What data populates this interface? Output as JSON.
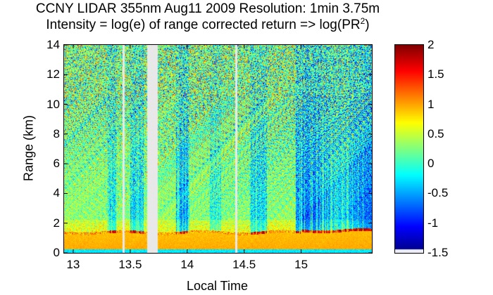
{
  "chart_data": {
    "type": "heatmap",
    "title_line1": "CCNY LIDAR 355nm Aug11 2009 Resolution: 1min 3.75m",
    "title_line2_prefix": "Intensity = log(e) of range corrected return => log(PR",
    "title_line2_sup": "2",
    "title_line2_suffix": ")",
    "xlabel": "Local Time",
    "ylabel": "Range (km)",
    "xlim": [
      12.92,
      15.62
    ],
    "ylim": [
      0,
      14
    ],
    "x_ticks": [
      13,
      13.5,
      14,
      14.5,
      15
    ],
    "x_tick_labels": [
      "13",
      "13.5",
      "14",
      "14.5",
      "15"
    ],
    "y_ticks": [
      0,
      2,
      4,
      6,
      8,
      10,
      12,
      14
    ],
    "y_tick_labels": [
      "0",
      "2",
      "4",
      "6",
      "8",
      "10",
      "12",
      "14"
    ],
    "colorbar": {
      "colormap": "jet",
      "clim": [
        -1.5,
        2
      ],
      "ticks": [
        2,
        1.5,
        1,
        0.5,
        0,
        -0.5,
        -1,
        -1.5
      ],
      "tick_labels": [
        "2",
        "1.5",
        "1",
        "0.5",
        "0",
        "-0.5",
        "-1",
        "-1.5"
      ]
    },
    "data_gaps_hours": [
      [
        13.43,
        13.45
      ],
      [
        13.65,
        13.74
      ],
      [
        14.42,
        14.44
      ]
    ],
    "boundary_layer_top_km": 1.4,
    "near_surface_value": 1.0,
    "upper_mean_value": 0.2
  }
}
